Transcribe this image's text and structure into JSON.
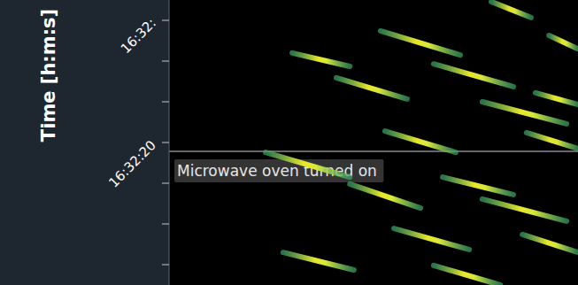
{
  "chart_data": {
    "type": "spectrogram",
    "ylabel": "Time [h:m:s]",
    "xlim": [
      0,
      100
    ],
    "ylim": [
      16.5,
      23.5
    ],
    "tick_labels": "y",
    "yticks": [
      {
        "value": 17,
        "label": null
      },
      {
        "value": 18,
        "label": null
      },
      {
        "value": 19,
        "label": null
      },
      {
        "value": 20,
        "label": "16:32:20"
      },
      {
        "value": 21,
        "label": null
      },
      {
        "value": 22,
        "label": null
      },
      {
        "value": 23,
        "label": "16:32:"
      }
    ],
    "color": "#3aa86b",
    "series": [
      {
        "x": [
          78.8,
          88.5
        ],
        "values": [
          23.46,
          23.07
        ]
      },
      {
        "x": [
          92.9,
          100
        ],
        "values": [
          22.63,
          22.3
        ]
      },
      {
        "x": [
          51.7,
          71.2
        ],
        "values": [
          22.74,
          22.15
        ]
      },
      {
        "x": [
          30.1,
          44.2
        ],
        "values": [
          22.2,
          21.87
        ]
      },
      {
        "x": [
          64.7,
          84.2
        ],
        "values": [
          21.93,
          21.37
        ]
      },
      {
        "x": [
          89.6,
          100
        ],
        "values": [
          21.22,
          20.93
        ]
      },
      {
        "x": [
          40.9,
          58.2
        ],
        "values": [
          21.59,
          21.07
        ]
      },
      {
        "x": [
          76.6,
          97.2
        ],
        "values": [
          21.0,
          20.46
        ]
      },
      {
        "x": [
          52.8,
          70.1
        ],
        "values": [
          20.28,
          19.76
        ]
      },
      {
        "x": [
          87.4,
          100
        ],
        "values": [
          20.24,
          19.85
        ]
      },
      {
        "x": [
          23.6,
          44.2
        ],
        "values": [
          19.76,
          19.15
        ]
      },
      {
        "x": [
          66.9,
          84.2
        ],
        "values": [
          19.15,
          18.72
        ]
      },
      {
        "x": [
          44.2,
          61.5
        ],
        "values": [
          18.98,
          18.39
        ]
      },
      {
        "x": [
          76.6,
          97.2
        ],
        "values": [
          18.61,
          18.07
        ]
      },
      {
        "x": [
          86.4,
          100
        ],
        "values": [
          17.74,
          17.3
        ]
      },
      {
        "x": [
          55.0,
          73.4
        ],
        "values": [
          17.89,
          17.37
        ]
      },
      {
        "x": [
          27.9,
          45.2
        ],
        "values": [
          17.3,
          16.87
        ]
      },
      {
        "x": [
          64.7,
          81.0
        ],
        "values": [
          16.98,
          16.5
        ]
      }
    ],
    "annotations": [
      {
        "text": "Microwave oven turned on",
        "y": 19.78
      }
    ]
  }
}
